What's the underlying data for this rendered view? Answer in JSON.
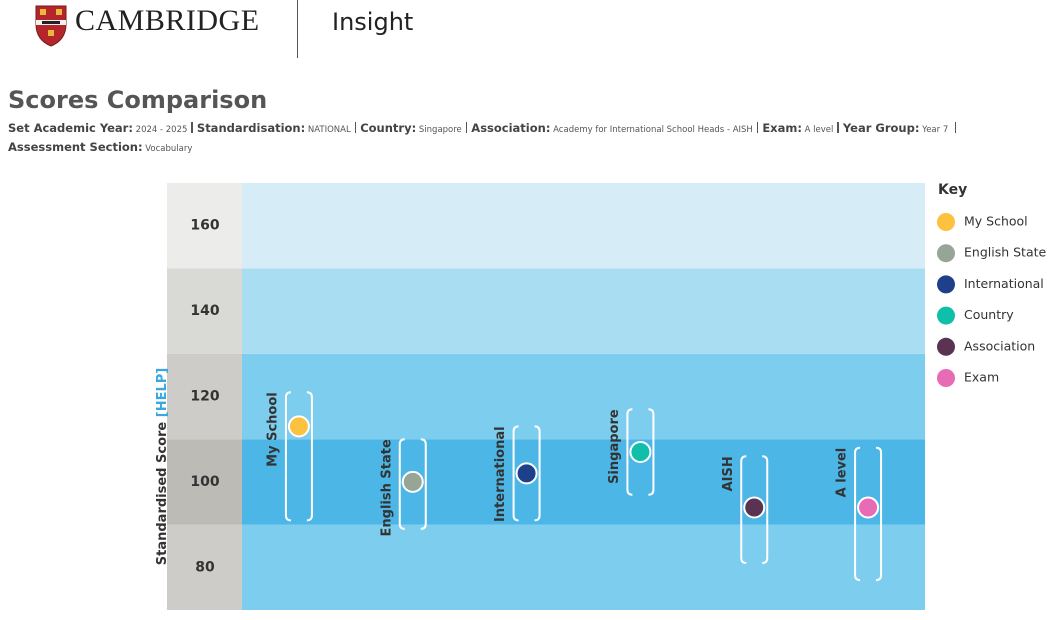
{
  "header": {
    "brand": "CAMBRIDGE",
    "product": "Insight"
  },
  "page_title": "Scores Comparison",
  "filters": [
    {
      "label": "Set Academic Year:",
      "value": "2024 - 2025"
    },
    {
      "label": "Standardisation:",
      "value": "NATIONAL"
    },
    {
      "label": "Country:",
      "value": "Singapore"
    },
    {
      "label": "Association:",
      "value": "Academy for International School Heads - AISH"
    },
    {
      "label": "Exam:",
      "value": "A level"
    },
    {
      "label": "Year Group:",
      "value": "Year 7"
    },
    {
      "label": "Assessment Section:",
      "value": "Vocabulary"
    }
  ],
  "chart_data": {
    "type": "range-dot",
    "y_label": "Standardised Score",
    "y_label_link": "[HELP]",
    "ylim": [
      70,
      170
    ],
    "yticks": [
      80,
      100,
      120,
      140,
      160
    ],
    "band_colors": [
      "#7ccdee",
      "#4cb6e6",
      "#7ccdee",
      "#a9ddf1",
      "#d6ecf7"
    ],
    "axis_band_colors": [
      "#cdccc8",
      "#bcbbb6",
      "#cdccc8",
      "#d9d9d5",
      "#ececeb"
    ],
    "categories": [
      "My School",
      "English State",
      "International",
      "Singapore",
      "AISH",
      "A level"
    ],
    "values": [
      113,
      100,
      102,
      107,
      94,
      94
    ],
    "ranges": [
      [
        91,
        121
      ],
      [
        89,
        110
      ],
      [
        91,
        113
      ],
      [
        97,
        117
      ],
      [
        81,
        106
      ],
      [
        77,
        108
      ]
    ],
    "colors": [
      "#fcc23f",
      "#96a596",
      "#1e3f8a",
      "#10bfa9",
      "#5a3352",
      "#e76cb5"
    ],
    "legend_title": "Key",
    "legend": [
      "My School",
      "English State",
      "International",
      "Country",
      "Association",
      "Exam"
    ]
  }
}
